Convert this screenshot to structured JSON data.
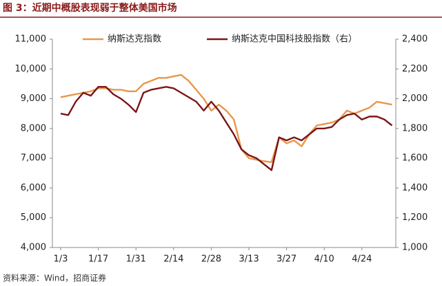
{
  "chart_data": {
    "type": "line",
    "title": "图 3：近期中概股表现弱于整体美国市场",
    "source": "资料来源：Wind，招商证券",
    "categories": [
      "1/3",
      null,
      null,
      null,
      null,
      "1/17",
      null,
      null,
      null,
      null,
      "1/31",
      null,
      null,
      null,
      null,
      "2/14",
      null,
      null,
      null,
      null,
      "2/28",
      null,
      null,
      null,
      null,
      "3/13",
      null,
      null,
      null,
      null,
      "3/27",
      null,
      null,
      null,
      null,
      "4/10",
      null,
      null,
      null,
      null,
      "4/24",
      null,
      null,
      null,
      null
    ],
    "series": [
      {
        "name": "纳斯达克指数",
        "color": "#e8964a",
        "axis": "y",
        "values": [
          9050,
          9100,
          9150,
          9200,
          9250,
          9350,
          9350,
          9300,
          9300,
          9250,
          9250,
          9500,
          9600,
          9700,
          9700,
          9750,
          9800,
          9600,
          9300,
          9000,
          8600,
          8800,
          8600,
          8300,
          7300,
          7000,
          6950,
          6900,
          6870,
          7700,
          7500,
          7600,
          7400,
          7800,
          8100,
          8150,
          8200,
          8300,
          8600,
          8500,
          8600,
          8700,
          8900,
          8850,
          8800
        ]
      },
      {
        "name": "纳斯达克中国科技股指数（右）",
        "color": "#7b1416",
        "axis": "y2",
        "values": [
          1900,
          1890,
          1980,
          2040,
          2020,
          2080,
          2080,
          2030,
          2000,
          1960,
          1910,
          2040,
          2060,
          2070,
          2080,
          2070,
          2040,
          2010,
          1980,
          1920,
          1980,
          1920,
          1840,
          1760,
          1660,
          1620,
          1600,
          1560,
          1520,
          1740,
          1720,
          1740,
          1720,
          1760,
          1800,
          1800,
          1810,
          1860,
          1890,
          1900,
          1860,
          1880,
          1880,
          1860,
          1820
        ]
      }
    ],
    "ylim": [
      4000,
      11000
    ],
    "yticks": [
      {
        "value": 4000,
        "label": "4,000"
      },
      {
        "value": 5000,
        "label": "5,000"
      },
      {
        "value": 6000,
        "label": "6,000"
      },
      {
        "value": 7000,
        "label": "7,000"
      },
      {
        "value": 8000,
        "label": "8,000"
      },
      {
        "value": 9000,
        "label": "9,000"
      },
      {
        "value": 10000,
        "label": "10,000"
      },
      {
        "value": 11000,
        "label": "11,000"
      }
    ],
    "y2lim": [
      1000,
      2400
    ],
    "y2ticks": [
      {
        "value": 1000,
        "label": "1,000"
      },
      {
        "value": 1200,
        "label": "1,200"
      },
      {
        "value": 1400,
        "label": "1,400"
      },
      {
        "value": 1600,
        "label": "1,600"
      },
      {
        "value": 1800,
        "label": "1,800"
      },
      {
        "value": 2000,
        "label": "2,000"
      },
      {
        "value": 2200,
        "label": "2,200"
      },
      {
        "value": 2400,
        "label": "2,400"
      }
    ],
    "grid": false,
    "legend": "top"
  }
}
